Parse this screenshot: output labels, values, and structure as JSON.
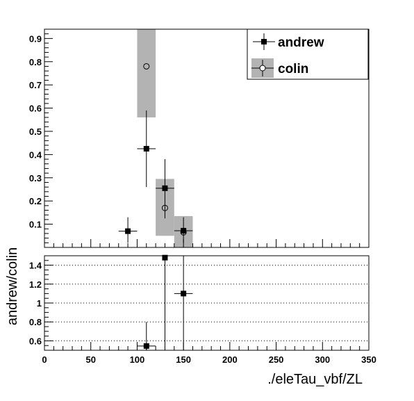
{
  "chart_data": [
    {
      "type": "scatter",
      "xlim": [
        0,
        350
      ],
      "ylim": [
        0,
        0.94
      ],
      "y_ticks": [
        "0.1",
        "0.2",
        "0.3",
        "0.4",
        "0.5",
        "0.6",
        "0.7",
        "0.8",
        "0.9"
      ],
      "legend_position": "top-right",
      "series": [
        {
          "name": "andrew",
          "marker": "filled-square",
          "color": "#000000",
          "points": [
            {
              "x": 90,
              "y": 0.07,
              "xerr": 10,
              "ylo": 0.02,
              "yhi": 0.13
            },
            {
              "x": 110,
              "y": 0.425,
              "xerr": 10,
              "ylo": 0.26,
              "yhi": 0.59
            },
            {
              "x": 130,
              "y": 0.255,
              "xerr": 10,
              "ylo": 0.125,
              "yhi": 0.38
            },
            {
              "x": 150,
              "y": 0.072,
              "xerr": 10,
              "ylo": 0.02,
              "yhi": 0.13
            }
          ]
        },
        {
          "name": "colin",
          "marker": "open-circle",
          "color": "#000000",
          "band_color": "#b3b3b3",
          "points": [
            {
              "x": 110,
              "y": 0.78,
              "xerr": 10,
              "ylo": 0.56,
              "yhi": 0.94
            },
            {
              "x": 130,
              "y": 0.17,
              "xerr": 10,
              "ylo": 0.05,
              "yhi": 0.295
            },
            {
              "x": 150,
              "y": 0.065,
              "xerr": 10,
              "ylo": 0.0,
              "yhi": 0.135
            }
          ]
        }
      ]
    },
    {
      "type": "scatter",
      "xlim": [
        0,
        350
      ],
      "ylim": [
        0.5,
        1.5
      ],
      "ylabel": "andrew/colin",
      "xlabel": "./eleTau_vbf/ZL",
      "x_ticks": [
        "0",
        "50",
        "100",
        "150",
        "200",
        "250",
        "300",
        "350"
      ],
      "y_ticks": [
        "0.6",
        "0.8",
        "1",
        "1.2",
        "1.4"
      ],
      "grid": "horizontal-dotted",
      "points": [
        {
          "x": 110,
          "y": 0.545,
          "xerr": 10,
          "ylo": 0.5,
          "yhi": 0.8
        },
        {
          "x": 130,
          "y": 1.48,
          "xerr": 0,
          "ylo": 0.5,
          "yhi": 1.5
        },
        {
          "x": 150,
          "y": 1.1,
          "xerr": 10,
          "ylo": 0.5,
          "yhi": 1.5
        }
      ]
    }
  ]
}
